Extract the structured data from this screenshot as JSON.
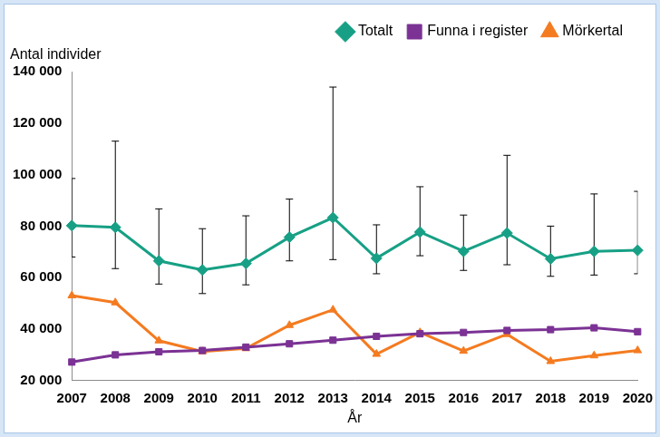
{
  "chart_data": {
    "type": "line",
    "y_label": "Antal individer",
    "x_label": "År",
    "categories": [
      "2007",
      "2008",
      "2009",
      "2010",
      "2011",
      "2012",
      "2013",
      "2014",
      "2015",
      "2016",
      "2017",
      "2018",
      "2019",
      "2020"
    ],
    "series": [
      {
        "name": "Totalt",
        "color": "#17a085",
        "marker": "diamond",
        "values": [
          80200,
          79500,
          66500,
          63000,
          65500,
          75700,
          83300,
          67500,
          77700,
          70200,
          77300,
          67300,
          70200,
          70600
        ],
        "error_low": [
          68000,
          63500,
          57500,
          53800,
          57200,
          66500,
          67000,
          61500,
          68500,
          62800,
          65000,
          60500,
          61000,
          61500
        ],
        "error_high": [
          98500,
          113000,
          86700,
          79000,
          84000,
          90500,
          134000,
          80500,
          95300,
          84300,
          107500,
          80000,
          92500,
          93500
        ]
      },
      {
        "name": "Funna i register",
        "color": "#7b3294",
        "marker": "square",
        "values": [
          27200,
          30000,
          31200,
          31700,
          33000,
          34300,
          35700,
          37200,
          38200,
          38700,
          39500,
          39800,
          40500,
          39000
        ]
      },
      {
        "name": "Mörkertal",
        "color": "#f47b20",
        "marker": "triangle",
        "values": [
          53000,
          50300,
          35500,
          31300,
          32500,
          41500,
          47500,
          30300,
          38700,
          31500,
          38000,
          27500,
          29700,
          31700
        ]
      }
    ],
    "ylim": [
      20000,
      140000
    ],
    "yticks": [
      {
        "value": 20000,
        "label": "20 000"
      },
      {
        "value": 40000,
        "label": "40 000"
      },
      {
        "value": 60000,
        "label": "60 000"
      },
      {
        "value": 80000,
        "label": "80 000"
      },
      {
        "value": 100000,
        "label": "100 000"
      },
      {
        "value": 120000,
        "label": "120 000"
      },
      {
        "value": 140000,
        "label": "140 000"
      }
    ],
    "grid": false,
    "legend": "top"
  }
}
